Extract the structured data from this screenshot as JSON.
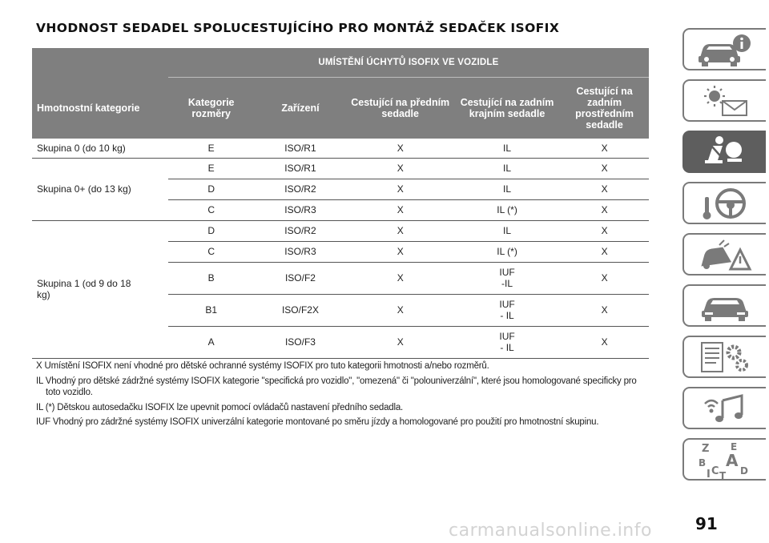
{
  "title": "VHODNOST SEDADEL SPOLUCESTUJÍCÍHO PRO MONTÁŽ SEDAČEK ISOFIX",
  "table": {
    "super_header": "UMÍSTĚNÍ ÚCHYTŮ ISOFIX VE VOZIDLE",
    "headers": [
      "Hmotnostní kategorie",
      "Kategorie rozměry",
      "Zařízení",
      "Cestující na předním sedadle",
      "Cestující na zadním krajním sedadle",
      "Cestující na zadním prostředním sedadle"
    ],
    "groups": [
      {
        "label": "Skupina 0 (do 10 kg)",
        "rows": [
          {
            "size": "E",
            "device": "ISO/R1",
            "front": "X",
            "rear_outer": "IL",
            "rear_middle": "X"
          }
        ]
      },
      {
        "label": "Skupina 0+ (do 13 kg)",
        "rows": [
          {
            "size": "E",
            "device": "ISO/R1",
            "front": "X",
            "rear_outer": "IL",
            "rear_middle": "X"
          },
          {
            "size": "D",
            "device": "ISO/R2",
            "front": "X",
            "rear_outer": "IL",
            "rear_middle": "X"
          },
          {
            "size": "C",
            "device": "ISO/R3",
            "front": "X",
            "rear_outer": "IL (*)",
            "rear_middle": "X"
          }
        ]
      },
      {
        "label": "Skupina 1 (od 9 do 18 kg)",
        "rows": [
          {
            "size": "D",
            "device": "ISO/R2",
            "front": "X",
            "rear_outer": "IL",
            "rear_middle": "X"
          },
          {
            "size": "C",
            "device": "ISO/R3",
            "front": "X",
            "rear_outer": "IL (*)",
            "rear_middle": "X"
          },
          {
            "size": "B",
            "device": "ISO/F2",
            "front": "X",
            "rear_outer": "IUF -IL",
            "rear_middle": "X"
          },
          {
            "size": "B1",
            "device": "ISO/F2X",
            "front": "X",
            "rear_outer": "IUF - IL",
            "rear_middle": "X"
          },
          {
            "size": "A",
            "device": "ISO/F3",
            "front": "X",
            "rear_outer": "IUF - IL",
            "rear_middle": "X"
          }
        ]
      }
    ]
  },
  "notes": [
    "X Umístění ISOFIX není vhodné pro dětské ochranné systémy ISOFIX pro tuto kategorii hmotnosti a/nebo rozměrů.",
    "IL Vhodný pro dětské zádržné systémy ISOFIX kategorie \"specifická pro vozidlo\", \"omezená\" či \"polouniverzální\", které jsou homologované specificky pro toto vozidlo.",
    "IL (*) Dětskou autosedačku ISOFIX lze upevnit pomocí ovládačů nastavení předního sedadla.",
    "IUF Vhodný pro zádržné systémy ISOFIX univerzální kategorie montované po směru jízdy a homologované pro použití pro hmotnostní skupinu."
  ],
  "side_tabs": [
    {
      "icon": "car-info-icon",
      "active": false
    },
    {
      "icon": "warning-lights-icon",
      "active": false
    },
    {
      "icon": "safety-airbag-icon",
      "active": true
    },
    {
      "icon": "steering-key-icon",
      "active": false
    },
    {
      "icon": "emergency-breakdown-icon",
      "active": false
    },
    {
      "icon": "car-service-icon",
      "active": false
    },
    {
      "icon": "specs-gears-icon",
      "active": false
    },
    {
      "icon": "multimedia-icon",
      "active": false
    },
    {
      "icon": "index-letters-icon",
      "active": false
    }
  ],
  "index_letters": [
    "Z",
    "E",
    "B",
    "A",
    "C",
    "D",
    "T",
    "I"
  ],
  "page_number": "91",
  "watermark": "carmanualsonline.info",
  "colors": {
    "header_bg": "#7f7f7f",
    "tab_active": "#5e5e5e",
    "tab_icon": "#7a7a7a"
  }
}
